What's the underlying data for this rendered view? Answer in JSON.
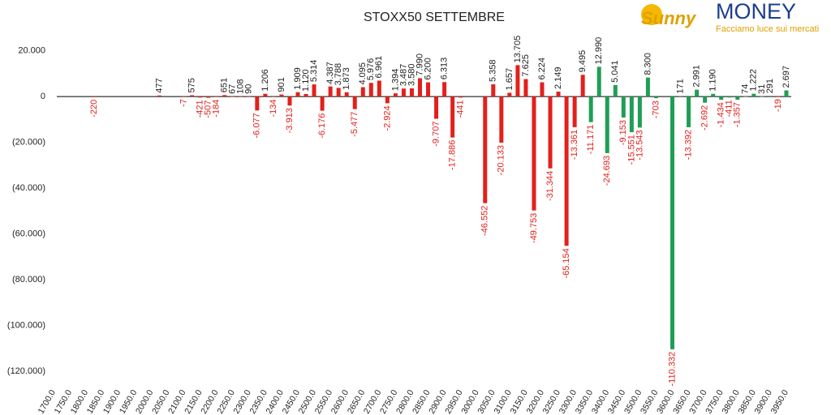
{
  "chart_data": {
    "type": "bar",
    "title": "STOXX50 SETTEMBRE",
    "xlim": [
      1690,
      3965
    ],
    "ylim": [
      -127000,
      28000
    ],
    "xticks": [
      {
        "value": 1700,
        "label": "1700.0"
      },
      {
        "value": 1750,
        "label": "1750.0"
      },
      {
        "value": 1800,
        "label": "1800.0"
      },
      {
        "value": 1850,
        "label": "1850.0"
      },
      {
        "value": 1900,
        "label": "1900.0"
      },
      {
        "value": 1950,
        "label": "1950.0"
      },
      {
        "value": 2000,
        "label": "2000.0"
      },
      {
        "value": 2050,
        "label": "2050.0"
      },
      {
        "value": 2100,
        "label": "2100.0"
      },
      {
        "value": 2150,
        "label": "2150.0"
      },
      {
        "value": 2200,
        "label": "2200.0"
      },
      {
        "value": 2250,
        "label": "2250.0"
      },
      {
        "value": 2300,
        "label": "2300.0"
      },
      {
        "value": 2350,
        "label": "2350.0"
      },
      {
        "value": 2400,
        "label": "2400.0"
      },
      {
        "value": 2450,
        "label": "2450.0"
      },
      {
        "value": 2500,
        "label": "2500.0"
      },
      {
        "value": 2550,
        "label": "2550.0"
      },
      {
        "value": 2600,
        "label": "2600.0"
      },
      {
        "value": 2650,
        "label": "2650.0"
      },
      {
        "value": 2700,
        "label": "2700.0"
      },
      {
        "value": 2750,
        "label": "2750.0"
      },
      {
        "value": 2800,
        "label": "2800.0"
      },
      {
        "value": 2850,
        "label": "2850.0"
      },
      {
        "value": 2900,
        "label": "2900.0"
      },
      {
        "value": 2950,
        "label": "2950.0"
      },
      {
        "value": 3000,
        "label": "3000.0"
      },
      {
        "value": 3050,
        "label": "3050.0"
      },
      {
        "value": 3100,
        "label": "3100.0"
      },
      {
        "value": 3150,
        "label": "3150.0"
      },
      {
        "value": 3200,
        "label": "3200.0"
      },
      {
        "value": 3250,
        "label": "3250.0"
      },
      {
        "value": 3300,
        "label": "3300.0"
      },
      {
        "value": 3350,
        "label": "3350.0"
      },
      {
        "value": 3400,
        "label": "3400.0"
      },
      {
        "value": 3450,
        "label": "3450.0"
      },
      {
        "value": 3500,
        "label": "3500.0"
      },
      {
        "value": 3550,
        "label": "3550.0"
      },
      {
        "value": 3600,
        "label": "3600.0"
      },
      {
        "value": 3650,
        "label": "3650.0"
      },
      {
        "value": 3700,
        "label": "3700.0"
      },
      {
        "value": 3750,
        "label": "3750.0"
      },
      {
        "value": 3800,
        "label": "3800.0"
      },
      {
        "value": 3850,
        "label": "3850.0"
      },
      {
        "value": 3900,
        "label": "3900.0"
      },
      {
        "value": 3950,
        "label": "3950.0"
      }
    ],
    "yticks": [
      {
        "value": 20000,
        "label": "20.000"
      },
      0,
      {
        "value": -20000,
        "label": "(20.000)"
      },
      {
        "value": -40000,
        "label": "(40.000)"
      },
      {
        "value": -60000,
        "label": "(60.000)"
      },
      {
        "value": -80000,
        "label": "(80.000)"
      },
      {
        "value": -100000,
        "label": "(100.000)"
      },
      {
        "value": -120000,
        "label": "(120.000)"
      }
    ],
    "series": [
      {
        "color": "#e3201b",
        "x": [
          1825,
          2025,
          2100,
          2125,
          2150,
          2175,
          2200,
          2225,
          2250,
          2275,
          2300,
          2325,
          2350,
          2375,
          2400,
          2425,
          2450,
          2475,
          2500,
          2525,
          2550,
          2575,
          2600,
          2625,
          2650,
          2675,
          2700,
          2725,
          2750,
          2775,
          2800,
          2825,
          2850,
          2875,
          2900,
          2925,
          2950,
          3025,
          3050,
          3075,
          3100,
          3125,
          3150,
          3175,
          3200,
          3225,
          3250,
          3275,
          3300,
          3325,
          3925
        ],
        "values": [
          -220,
          477,
          -7,
          575,
          -421,
          -507,
          -184,
          651,
          67,
          108,
          90,
          -6077,
          1206,
          -134,
          901,
          -3913,
          1909,
          1120,
          5314,
          -6176,
          4387,
          3788,
          1873,
          -5477,
          4095,
          5976,
          6961,
          -2924,
          1394,
          3487,
          3580,
          7990,
          6200,
          -9707,
          6313,
          -17886,
          -441,
          -46552,
          5358,
          -20133,
          1657,
          13705,
          7625,
          -49753,
          6224,
          -31344,
          2149,
          -65154,
          -13361,
          9495,
          -19
        ],
        "value_labels": [
          "-220",
          "477",
          "-7",
          "575",
          "-421",
          "-507",
          "-184",
          "651",
          "67",
          "108",
          "90",
          "-6.077",
          "1.206",
          "-134",
          "901",
          "-3.913",
          "1.909",
          "1.120",
          "5.314",
          "-6.176",
          "4.387",
          "3.788",
          "1.873",
          "-5.477",
          "4.095",
          "5.976",
          "6.961",
          "-2.924",
          "1.394",
          "3.487",
          "3.580",
          "7.990",
          "6.200",
          "-9.707",
          "6.313",
          "-17.886",
          "-441",
          "-46.552",
          "5.358",
          "-20.133",
          "1.657",
          "13.705",
          "7.625",
          "-49.753",
          "6.224",
          "-31.344",
          "2.149",
          "-65.154",
          "-13.361",
          "9.495",
          "-19"
        ]
      },
      {
        "color": "#1f9e55",
        "x": [
          3350,
          3375,
          3400,
          3425,
          3450,
          3475,
          3500,
          3525,
          3550,
          3600,
          3625,
          3650,
          3675,
          3700,
          3725,
          3750,
          3775,
          3800,
          3825,
          3850,
          3875,
          3900,
          3950
        ],
        "values": [
          -11171,
          12990,
          -24693,
          5041,
          -9153,
          -15551,
          -13543,
          8300,
          -703,
          -110332,
          171,
          -13392,
          2991,
          -2692,
          1190,
          -1434,
          -411,
          -1357,
          74,
          1222,
          31,
          291,
          2697
        ],
        "value_labels": [
          "-11.171",
          "12.990",
          "-24.693",
          "5.041",
          "-9.153",
          "-15.551",
          "-13.543",
          "8.300",
          "-703",
          "-110.332",
          "171",
          "-13.392",
          "2.991",
          "-2.692",
          "1.190",
          "-1.434",
          "-411",
          "-1.357",
          "74",
          "1.222",
          "31",
          "291",
          "2.697"
        ]
      }
    ]
  },
  "logo": {
    "brand": "Sunny",
    "name": "MONEY",
    "tagline": "Facciamo luce sui mercati"
  }
}
